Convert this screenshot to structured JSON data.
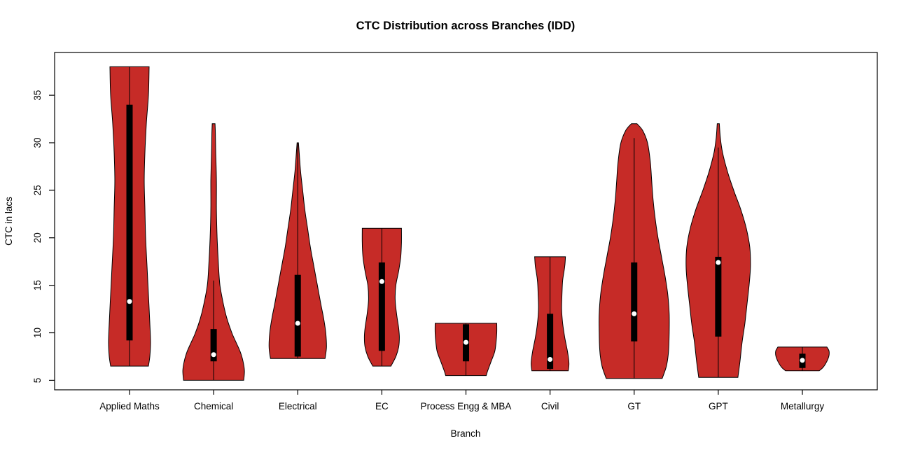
{
  "chart_data": {
    "type": "violin",
    "title": "CTC Distribution across Branches (IDD)",
    "xlabel": "Branch",
    "ylabel": "CTC in lacs",
    "ylim": [
      4.0,
      39.5
    ],
    "yticks": [
      5,
      10,
      15,
      20,
      25,
      30,
      35
    ],
    "grid": false,
    "fill_color": "#C62B27",
    "stroke_color": "#000000",
    "box_color": "#000000",
    "median_color": "#FFFFFF",
    "categories": [
      "Applied Maths",
      "Chemical",
      "Electrical",
      "EC",
      "Process Engg & MBA",
      "Civil",
      "GT",
      "GPT",
      "Metallurgy"
    ],
    "violins": [
      {
        "label": "Applied Maths",
        "min": 6.5,
        "max": 38,
        "q1": 9.2,
        "q3": 34,
        "median": 13.3,
        "whisker_low": 6.5,
        "whisker_high": 38,
        "profile": [
          [
            6.5,
            27
          ],
          [
            7.5,
            29
          ],
          [
            9,
            30
          ],
          [
            11,
            29
          ],
          [
            14,
            27
          ],
          [
            17,
            25
          ],
          [
            20,
            23
          ],
          [
            23,
            22
          ],
          [
            26,
            21
          ],
          [
            29,
            22
          ],
          [
            32,
            24
          ],
          [
            35,
            27
          ],
          [
            38,
            28
          ]
        ]
      },
      {
        "label": "Chemical",
        "min": 5,
        "max": 32,
        "q1": 7.0,
        "q3": 10.4,
        "median": 7.7,
        "whisker_low": 5,
        "whisker_high": 15.5,
        "profile": [
          [
            5,
            43
          ],
          [
            6,
            44
          ],
          [
            7,
            42
          ],
          [
            8,
            38
          ],
          [
            9,
            32
          ],
          [
            10,
            26
          ],
          [
            11.5,
            19
          ],
          [
            13,
            14
          ],
          [
            15,
            9
          ],
          [
            17,
            7
          ],
          [
            20,
            5
          ],
          [
            23,
            4
          ],
          [
            26,
            4
          ],
          [
            29,
            3
          ],
          [
            31,
            2.5
          ],
          [
            32,
            2
          ]
        ]
      },
      {
        "label": "Electrical",
        "min": 7.3,
        "max": 30,
        "q1": 7.5,
        "q3": 16.1,
        "median": 11.0,
        "whisker_low": 7.3,
        "whisker_high": 30,
        "profile": [
          [
            7.3,
            39
          ],
          [
            8.5,
            41
          ],
          [
            10,
            40
          ],
          [
            11.5,
            37
          ],
          [
            13,
            33
          ],
          [
            15,
            28
          ],
          [
            17,
            23
          ],
          [
            19,
            18
          ],
          [
            21,
            14
          ],
          [
            23,
            10
          ],
          [
            25,
            7
          ],
          [
            27,
            4
          ],
          [
            29,
            2
          ],
          [
            30,
            1
          ]
        ]
      },
      {
        "label": "EC",
        "min": 6.5,
        "max": 21,
        "q1": 8.1,
        "q3": 17.4,
        "median": 15.4,
        "whisker_low": 6.5,
        "whisker_high": 21,
        "profile": [
          [
            6.5,
            13
          ],
          [
            7.5,
            20
          ],
          [
            8.5,
            24
          ],
          [
            9.5,
            25
          ],
          [
            10.5,
            24
          ],
          [
            12,
            21
          ],
          [
            13.5,
            19
          ],
          [
            15,
            20
          ],
          [
            16.5,
            24
          ],
          [
            18,
            27
          ],
          [
            19.5,
            28
          ],
          [
            21,
            28
          ]
        ]
      },
      {
        "label": "Process Engg & MBA",
        "min": 5.5,
        "max": 11,
        "q1": 7.0,
        "q3": 10.9,
        "median": 9.0,
        "whisker_low": 5.5,
        "whisker_high": 11,
        "profile": [
          [
            5.5,
            29
          ],
          [
            6,
            31
          ],
          [
            7,
            36
          ],
          [
            8,
            41
          ],
          [
            9,
            43
          ],
          [
            10,
            44
          ],
          [
            11,
            44
          ]
        ]
      },
      {
        "label": "Civil",
        "min": 6,
        "max": 18,
        "q1": 6.2,
        "q3": 12.0,
        "median": 7.2,
        "whisker_low": 6,
        "whisker_high": 18,
        "profile": [
          [
            6,
            26
          ],
          [
            6.8,
            27
          ],
          [
            8,
            25
          ],
          [
            9.5,
            21
          ],
          [
            11,
            18
          ],
          [
            12.5,
            16.5
          ],
          [
            14,
            17
          ],
          [
            15.5,
            18
          ],
          [
            17,
            21
          ],
          [
            18,
            22
          ]
        ]
      },
      {
        "label": "GT",
        "min": 5.2,
        "max": 32,
        "q1": 9.1,
        "q3": 17.4,
        "median": 12.0,
        "whisker_low": 5.2,
        "whisker_high": 30.5,
        "profile": [
          [
            5.2,
            40
          ],
          [
            6.5,
            46
          ],
          [
            8,
            49
          ],
          [
            10,
            50
          ],
          [
            12,
            50
          ],
          [
            14,
            48
          ],
          [
            16,
            44
          ],
          [
            18,
            39
          ],
          [
            20,
            34
          ],
          [
            22,
            30
          ],
          [
            24,
            27
          ],
          [
            26,
            25
          ],
          [
            28,
            23
          ],
          [
            30,
            19
          ],
          [
            31.3,
            12
          ],
          [
            32,
            4
          ]
        ]
      },
      {
        "label": "GPT",
        "min": 5.3,
        "max": 32,
        "q1": 9.6,
        "q3": 18.0,
        "median": 17.4,
        "whisker_low": 5.3,
        "whisker_high": 29.5,
        "profile": [
          [
            5.3,
            28
          ],
          [
            7,
            31
          ],
          [
            9,
            34
          ],
          [
            11,
            38
          ],
          [
            13,
            41
          ],
          [
            15,
            44
          ],
          [
            17,
            46
          ],
          [
            19,
            45
          ],
          [
            21,
            40
          ],
          [
            23,
            32
          ],
          [
            25,
            22
          ],
          [
            27,
            13
          ],
          [
            29,
            6
          ],
          [
            30.5,
            3
          ],
          [
            32,
            1.5
          ]
        ]
      },
      {
        "label": "Metallurgy",
        "min": 6,
        "max": 8.5,
        "q1": 6.3,
        "q3": 7.8,
        "median": 7.1,
        "whisker_low": 6,
        "whisker_high": 8.5,
        "profile": [
          [
            6,
            24
          ],
          [
            6.4,
            30
          ],
          [
            7,
            35
          ],
          [
            7.6,
            38
          ],
          [
            8.1,
            38
          ],
          [
            8.5,
            35
          ]
        ]
      }
    ]
  }
}
